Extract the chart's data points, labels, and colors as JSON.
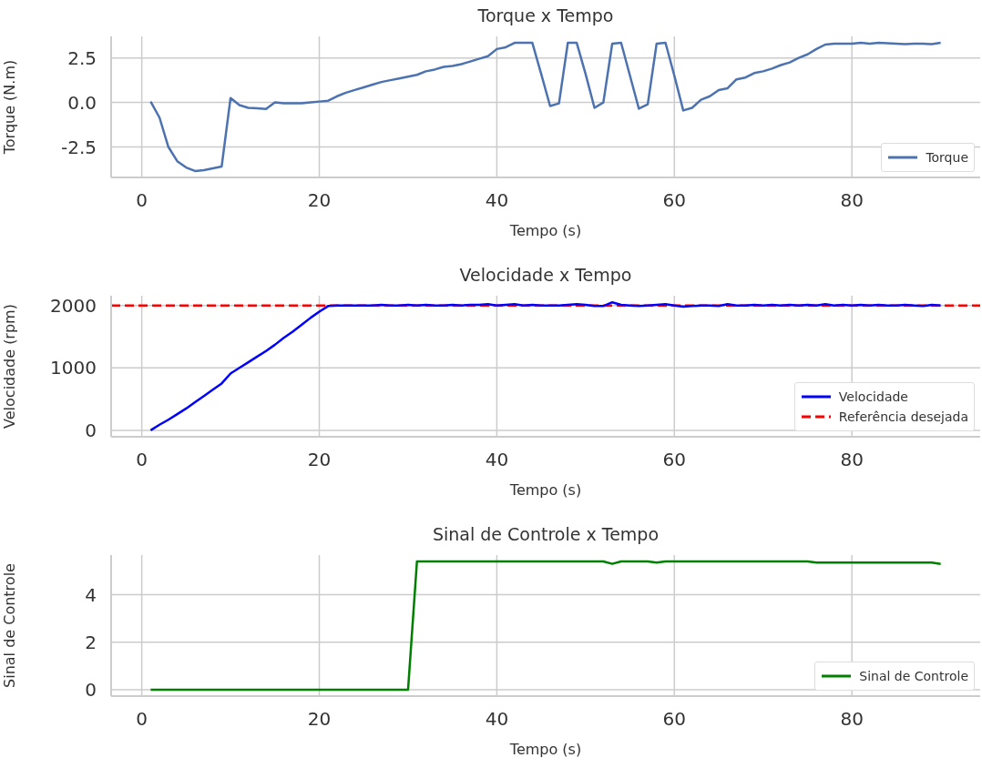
{
  "chart_data": [
    {
      "type": "line",
      "title": "Torque x Tempo",
      "xlabel": "Tempo (s)",
      "ylabel": "Torque (N.m)",
      "x": [
        1,
        2,
        3,
        4,
        5,
        6,
        7,
        8,
        9,
        10,
        11,
        12,
        13,
        14,
        15,
        16,
        17,
        18,
        19,
        20,
        21,
        22,
        23,
        24,
        25,
        26,
        27,
        28,
        29,
        30,
        31,
        32,
        33,
        34,
        35,
        36,
        37,
        38,
        39,
        40,
        41,
        42,
        43,
        44,
        45,
        46,
        47,
        48,
        49,
        50,
        51,
        52,
        53,
        54,
        55,
        56,
        57,
        58,
        59,
        60,
        61,
        62,
        63,
        64,
        65,
        66,
        67,
        68,
        69,
        70,
        71,
        72,
        73,
        74,
        75,
        76,
        77,
        78,
        79,
        80,
        81,
        82,
        83,
        84,
        85,
        86,
        87,
        88,
        89,
        90
      ],
      "series": [
        {
          "name": "Torque",
          "color": "#4c72b0",
          "values": [
            0.05,
            -0.85,
            -2.5,
            -3.3,
            -3.65,
            -3.85,
            -3.8,
            -3.7,
            -3.6,
            0.25,
            -0.15,
            -0.3,
            -0.33,
            -0.37,
            0.0,
            -0.05,
            -0.05,
            -0.05,
            0.0,
            0.05,
            0.1,
            0.35,
            0.55,
            0.7,
            0.85,
            1.0,
            1.15,
            1.25,
            1.35,
            1.45,
            1.55,
            1.75,
            1.85,
            2.0,
            2.05,
            2.15,
            2.3,
            2.45,
            2.6,
            3.0,
            3.1,
            3.35,
            3.35,
            3.35,
            1.6,
            -0.2,
            -0.05,
            3.35,
            3.35,
            1.6,
            -0.3,
            0.0,
            3.3,
            3.35,
            1.5,
            -0.35,
            -0.1,
            3.3,
            3.35,
            1.5,
            -0.45,
            -0.3,
            0.15,
            0.35,
            0.7,
            0.8,
            1.3,
            1.4,
            1.65,
            1.75,
            1.9,
            2.1,
            2.25,
            2.5,
            2.7,
            3.0,
            3.25,
            3.3,
            3.3,
            3.3,
            3.35,
            3.3,
            3.35,
            3.33,
            3.3,
            3.28,
            3.3,
            3.3,
            3.28,
            3.35
          ]
        }
      ],
      "xlim": [
        -3.45,
        94.45
      ],
      "xticks": [
        0,
        20,
        40,
        60,
        80
      ],
      "ylim": [
        -4.21,
        3.71
      ],
      "yticks": [
        -2.5,
        {
          "value": 0,
          "label": "0.0"
        },
        2.5
      ],
      "grid": true,
      "legend": "bottom right"
    },
    {
      "type": "line",
      "title": "Velocidade x Tempo",
      "xlabel": "Tempo (s)",
      "ylabel": "Velocidade (rpm)",
      "x": [
        1,
        2,
        3,
        4,
        5,
        6,
        7,
        8,
        9,
        10,
        11,
        12,
        13,
        14,
        15,
        16,
        17,
        18,
        19,
        20,
        21,
        22,
        23,
        24,
        25,
        26,
        27,
        28,
        29,
        30,
        31,
        32,
        33,
        34,
        35,
        36,
        37,
        38,
        39,
        40,
        41,
        42,
        43,
        44,
        45,
        46,
        47,
        48,
        49,
        50,
        51,
        52,
        53,
        54,
        55,
        56,
        57,
        58,
        59,
        60,
        61,
        62,
        63,
        64,
        65,
        66,
        67,
        68,
        69,
        70,
        71,
        72,
        73,
        74,
        75,
        76,
        77,
        78,
        79,
        80,
        81,
        82,
        83,
        84,
        85,
        86,
        87,
        88,
        89,
        90
      ],
      "series": [
        {
          "name": "Velocidade",
          "color": "#0000ff",
          "values": [
            0,
            90,
            170,
            260,
            350,
            450,
            550,
            650,
            750,
            910,
            1000,
            1090,
            1180,
            1270,
            1370,
            1480,
            1580,
            1690,
            1800,
            1900,
            1990,
            2000,
            2000,
            2000,
            2000,
            2000,
            2010,
            2000,
            2000,
            2010,
            2000,
            2010,
            2000,
            2000,
            2010,
            2000,
            2010,
            2010,
            2020,
            2000,
            2010,
            2020,
            2000,
            2010,
            2000,
            2000,
            2000,
            2010,
            2020,
            2010,
            1990,
            1990,
            2050,
            2010,
            2000,
            1990,
            2000,
            2010,
            2020,
            2000,
            1980,
            1990,
            2000,
            2000,
            1990,
            2020,
            2000,
            2000,
            2010,
            2000,
            2010,
            2000,
            2010,
            2000,
            2010,
            2000,
            2020,
            2000,
            2010,
            2000,
            2010,
            2000,
            2010,
            2000,
            2000,
            2010,
            2000,
            1990,
            2010,
            2000
          ]
        }
      ],
      "ref_lines": [
        {
          "axis": "y",
          "value": 2000,
          "label": "Referência desejada",
          "color": "#ff0000",
          "line_style": "dashed"
        }
      ],
      "xlim": [
        -3.45,
        94.45
      ],
      "xticks": [
        0,
        20,
        40,
        60,
        80
      ],
      "ylim": [
        -103,
        2155
      ],
      "yticks": [
        0,
        1000,
        2000
      ],
      "grid": true,
      "legend": "bottom right"
    },
    {
      "type": "line",
      "title": "Sinal de Controle x Tempo",
      "xlabel": "Tempo (s)",
      "ylabel": "Sinal de Controle",
      "x": [
        1,
        2,
        3,
        4,
        5,
        6,
        7,
        8,
        9,
        10,
        11,
        12,
        13,
        14,
        15,
        16,
        17,
        18,
        19,
        20,
        21,
        22,
        23,
        24,
        25,
        26,
        27,
        28,
        29,
        30,
        31,
        32,
        33,
        34,
        35,
        36,
        37,
        38,
        39,
        40,
        41,
        42,
        43,
        44,
        45,
        46,
        47,
        48,
        49,
        50,
        51,
        52,
        53,
        54,
        55,
        56,
        57,
        58,
        59,
        60,
        61,
        62,
        63,
        64,
        65,
        66,
        67,
        68,
        69,
        70,
        71,
        72,
        73,
        74,
        75,
        76,
        77,
        78,
        79,
        80,
        81,
        82,
        83,
        84,
        85,
        86,
        87,
        88,
        89,
        90
      ],
      "series": [
        {
          "name": "Sinal de Controle",
          "color": "#008000",
          "values": [
            0,
            0,
            0,
            0,
            0,
            0,
            0,
            0,
            0,
            0,
            0,
            0,
            0,
            0,
            0,
            0,
            0,
            0,
            0,
            0,
            0,
            0,
            0,
            0,
            0,
            0,
            0,
            0,
            0,
            0,
            5.4,
            5.4,
            5.4,
            5.4,
            5.4,
            5.4,
            5.4,
            5.4,
            5.4,
            5.4,
            5.4,
            5.4,
            5.4,
            5.4,
            5.4,
            5.4,
            5.4,
            5.4,
            5.4,
            5.4,
            5.4,
            5.4,
            5.3,
            5.4,
            5.4,
            5.4,
            5.4,
            5.35,
            5.4,
            5.4,
            5.4,
            5.4,
            5.4,
            5.4,
            5.4,
            5.4,
            5.4,
            5.4,
            5.4,
            5.4,
            5.4,
            5.4,
            5.4,
            5.4,
            5.4,
            5.35,
            5.35,
            5.35,
            5.35,
            5.35,
            5.35,
            5.35,
            5.35,
            5.35,
            5.35,
            5.35,
            5.35,
            5.35,
            5.35,
            5.3
          ]
        }
      ],
      "xlim": [
        -3.45,
        94.45
      ],
      "xticks": [
        0,
        20,
        40,
        60,
        80
      ],
      "ylim": [
        -0.27,
        5.67
      ],
      "yticks": [
        0,
        2,
        4
      ],
      "grid": true,
      "legend": "bottom right"
    }
  ]
}
